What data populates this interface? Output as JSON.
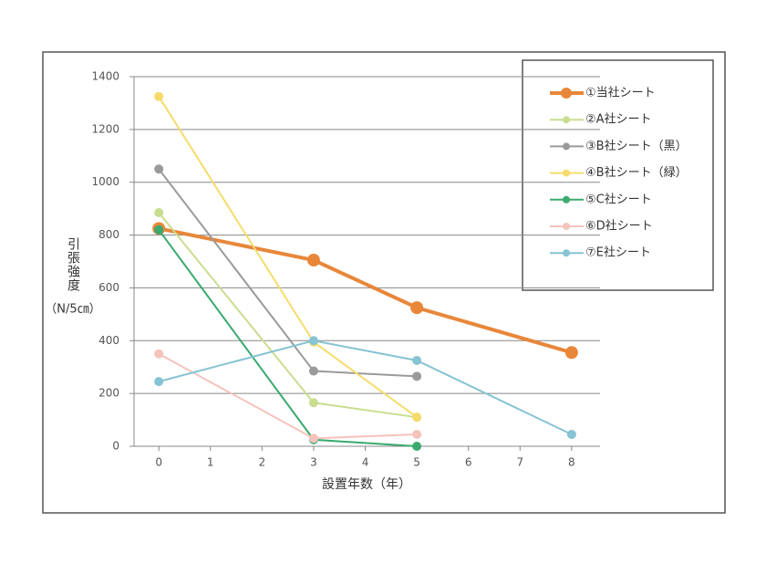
{
  "chart_data": {
    "type": "line",
    "y_label": "引張強度",
    "y_unit": "（N/5㎝）",
    "x_label": "設置年数（年）",
    "x": [
      0,
      3,
      5,
      8
    ],
    "series": [
      {
        "name": "①当社シート",
        "color": "#e8873a",
        "line_width": 4,
        "values": [
          825,
          705,
          525,
          355
        ]
      },
      {
        "name": "②A社シート",
        "color": "#c9dd8f",
        "line_width": 2,
        "values": [
          885,
          165,
          110,
          null
        ]
      },
      {
        "name": "③B社シート（黒）",
        "color": "#9a9a9a",
        "line_width": 2,
        "values": [
          1050,
          285,
          265,
          null
        ]
      },
      {
        "name": "④B社シート（緑）",
        "color": "#f5dc6a",
        "line_width": 2,
        "values": [
          1325,
          395,
          110,
          null
        ]
      },
      {
        "name": "⑤C社シート",
        "color": "#3aaa6e",
        "line_width": 2,
        "values": [
          820,
          25,
          0,
          null
        ]
      },
      {
        "name": "⑥D社シート",
        "color": "#f5c3bc",
        "line_width": 2,
        "values": [
          350,
          30,
          45,
          null
        ]
      },
      {
        "name": "⑦E社シート",
        "color": "#86c3d3",
        "line_width": 2,
        "values": [
          245,
          400,
          325,
          45
        ]
      }
    ],
    "xlim": [
      -0.48,
      8.55
    ],
    "xticks": [
      0,
      1,
      2,
      3,
      4,
      5,
      6,
      7,
      8
    ],
    "ylim": [
      0,
      1400
    ],
    "yticks": [
      0,
      200,
      400,
      600,
      800,
      1000,
      1200,
      1400
    ],
    "grid": true,
    "legend": "upper right"
  }
}
